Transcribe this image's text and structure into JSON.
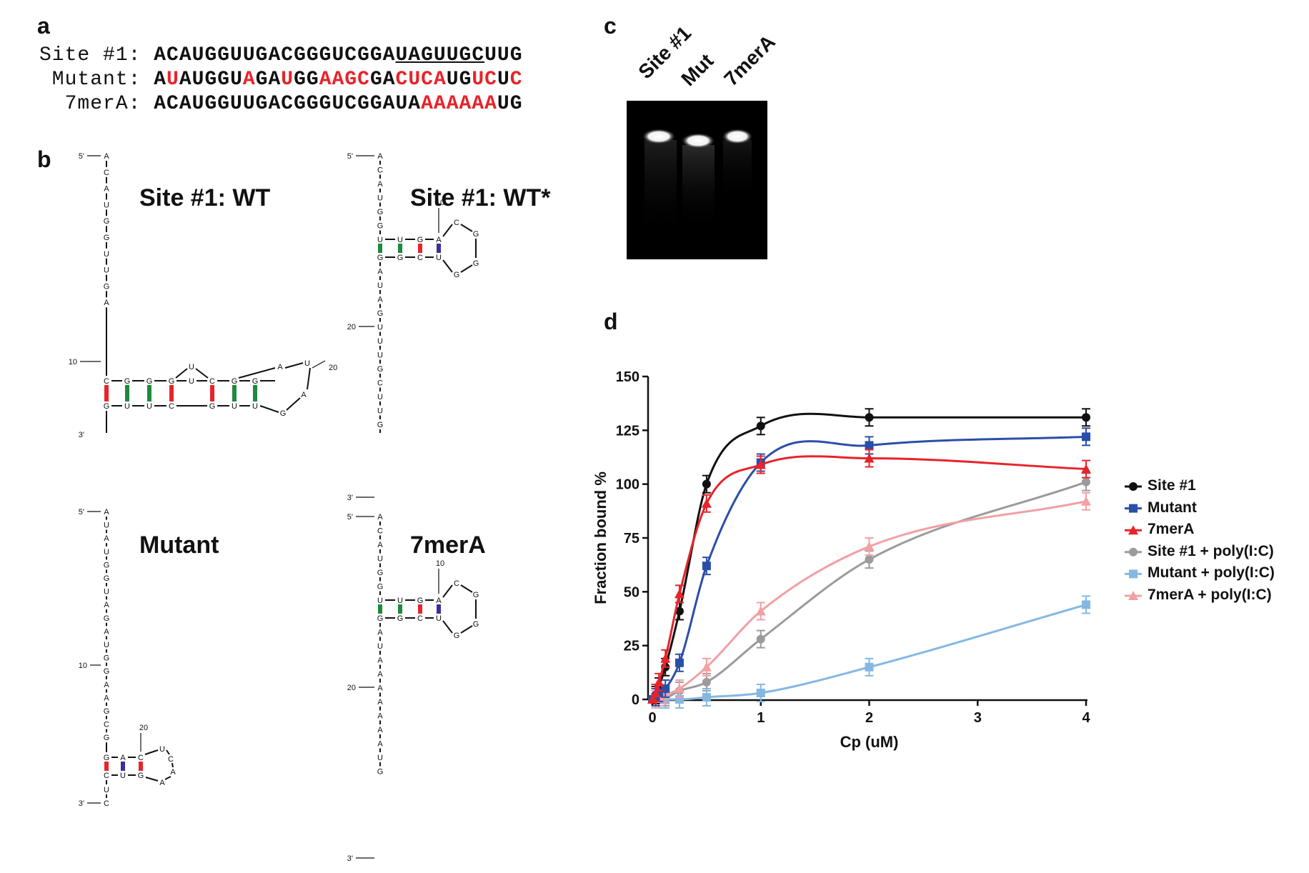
{
  "panels": {
    "a": "a",
    "b": "b",
    "c": "c",
    "d": "d"
  },
  "sequences": [
    {
      "label": "Site #1:",
      "segments": [
        {
          "t": "ACAUGGUUGACGGGUCGGA",
          "s": "n"
        },
        {
          "t": "UAGUUGC",
          "s": "u"
        },
        {
          "t": "UUG",
          "s": "n"
        }
      ]
    },
    {
      "label": " Mutant:",
      "segments": [
        {
          "t": "A",
          "s": "n"
        },
        {
          "t": "U",
          "s": "r"
        },
        {
          "t": "AUGGU",
          "s": "n"
        },
        {
          "t": "A",
          "s": "r"
        },
        {
          "t": "GA",
          "s": "n"
        },
        {
          "t": "U",
          "s": "r"
        },
        {
          "t": "GG",
          "s": "n"
        },
        {
          "t": "AAGC",
          "s": "r"
        },
        {
          "t": "GA",
          "s": "n"
        },
        {
          "t": "CUCA",
          "s": "r"
        },
        {
          "t": "UG",
          "s": "n"
        },
        {
          "t": "UC",
          "s": "r"
        },
        {
          "t": "U",
          "s": "n"
        },
        {
          "t": "C",
          "s": "r"
        }
      ]
    },
    {
      "label": "  7merA:",
      "segments": [
        {
          "t": "ACAUGGUUGACGGGUCGGAUA",
          "s": "n"
        },
        {
          "t": "AAAAAA",
          "s": "r"
        },
        {
          "t": "UG",
          "s": "n"
        }
      ]
    }
  ],
  "structures": {
    "wt_title": "Site #1: WT",
    "wtstar_title": "Site #1: WT*",
    "mutant_title": "Mutant",
    "merA_title": "7merA",
    "wt": {
      "stem": "ACAUGGUUGA",
      "top": [
        "C",
        "G",
        "G",
        "G",
        "U",
        "C",
        "G",
        "G",
        "A",
        "U"
      ],
      "bottom": [
        "G",
        "U",
        "U",
        "C",
        "",
        "G",
        "U",
        "U",
        "G",
        "A"
      ],
      "three": "G"
    },
    "wtstar": {
      "stem1": "ACAUGG",
      "top": [
        "U",
        "U",
        "G",
        "A"
      ],
      "bottom": [
        "G",
        "G",
        "C",
        "U"
      ],
      "loop": [
        "C",
        "G",
        "G",
        "G"
      ],
      "stem2": "AUAGUUUGCUUG"
    },
    "mutant": {
      "stem": "AUAUGGUAGAUGGAAGCG",
      "top": [
        "G",
        "A",
        "C",
        "U"
      ],
      "bottom": [
        "C",
        "U",
        "G",
        "C"
      ],
      "loop": [
        "C",
        "A",
        "A"
      ],
      "three": "UC"
    },
    "mera": {
      "stem1": "ACAUGG",
      "top": [
        "U",
        "U",
        "G",
        "A"
      ],
      "bottom": [
        "G",
        "G",
        "C",
        "U"
      ],
      "loop": [
        "C",
        "G",
        "G",
        "G"
      ],
      "stem2": "AUAAAAAAAUG"
    },
    "labels": {
      "five": "5'",
      "three": "3'",
      "n10": "10",
      "n20": "20"
    }
  },
  "gel": {
    "lanes": [
      "Site #1",
      "Mut",
      "7merA"
    ]
  },
  "chart_data": {
    "type": "line",
    "xlabel": "Cp  (uM)",
    "ylabel": "Fraction bound  %",
    "xlim": [
      0,
      4
    ],
    "ylim": [
      0,
      150
    ],
    "xticks": [
      0,
      1,
      2,
      3,
      4
    ],
    "yticks": [
      0,
      25,
      50,
      75,
      100,
      125,
      150
    ],
    "x": [
      0,
      0.03,
      0.06,
      0.12,
      0.25,
      0.5,
      1,
      2,
      4
    ],
    "series": [
      {
        "name": "Site #1",
        "color": "#111111",
        "marker": "circle",
        "values": [
          0,
          2,
          6,
          15,
          41,
          100,
          127,
          131,
          131
        ]
      },
      {
        "name": "Mutant",
        "color": "#2a4fa8",
        "marker": "square",
        "values": [
          0,
          1,
          3,
          5,
          17,
          62,
          110,
          118,
          122
        ]
      },
      {
        "name": "7merA",
        "color": "#e8232a",
        "marker": "triangle",
        "values": [
          0,
          3,
          8,
          19,
          49,
          91,
          109,
          112,
          107
        ]
      },
      {
        "name": "Site #1 + poly(I:C)",
        "color": "#9b9b9b",
        "marker": "circle",
        "values": [
          0,
          0,
          1,
          1,
          4,
          8,
          28,
          65,
          101
        ]
      },
      {
        "name": "Mutant + poly(I:C)",
        "color": "#84b8e3",
        "marker": "square",
        "values": [
          0,
          0,
          0,
          0,
          0,
          1,
          3,
          15,
          44
        ]
      },
      {
        "name": "7merA + poly(I:C)",
        "color": "#f2a0a4",
        "marker": "triangle",
        "values": [
          0,
          0,
          1,
          2,
          5,
          15,
          41,
          71,
          92
        ]
      }
    ]
  }
}
